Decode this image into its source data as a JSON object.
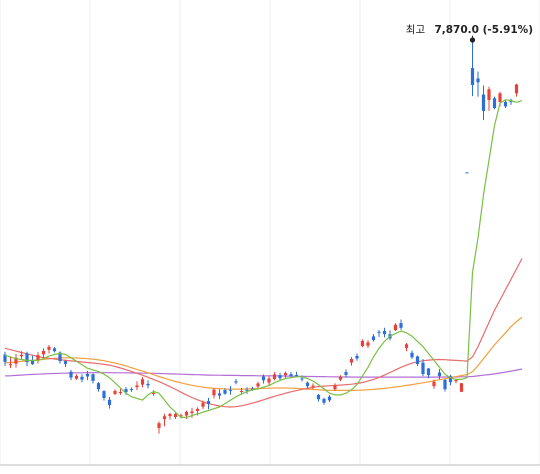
{
  "chart_data": {
    "type": "candlestick",
    "grid": "vertical",
    "colors": {
      "up": "#e8413a",
      "down": "#2d6fd6",
      "grid": "#ececec",
      "baseline": "#bdbdbd",
      "ma_short": "#7ac043",
      "ma_mid": "#e86c6c",
      "ma_long": "#f0a040",
      "ma_longest": "#b46fd6"
    },
    "annotation": {
      "label": "최고",
      "value_text": "7,870.0 (-5.91%)",
      "value": 7870.0,
      "candle_index": 85
    },
    "candles": [
      [
        6024,
        6040,
        5957,
        5982
      ],
      [
        5962,
        6013,
        5945,
        5968
      ],
      [
        5971,
        6028,
        5948,
        6005
      ],
      [
        6014,
        6043,
        5994,
        6023
      ],
      [
        6031,
        6041,
        5957,
        5980
      ],
      [
        5988,
        6017,
        5964,
        5968
      ],
      [
        5988,
        6038,
        5972,
        6020
      ],
      [
        6025,
        6060,
        6001,
        6045
      ],
      [
        6051,
        6079,
        6030,
        6068
      ],
      [
        6060,
        6067,
        6036,
        6043
      ],
      [
        6036,
        6042,
        5972,
        5986
      ],
      [
        5986,
        5994,
        5952,
        5970
      ],
      [
        5924,
        5935,
        5876,
        5891
      ],
      [
        5884,
        5910,
        5877,
        5900
      ],
      [
        5895,
        5910,
        5864,
        5879
      ],
      [
        5912,
        5929,
        5876,
        5897
      ],
      [
        5910,
        5914,
        5856,
        5871
      ],
      [
        5858,
        5865,
        5809,
        5823
      ],
      [
        5812,
        5817,
        5757,
        5772
      ],
      [
        5762,
        5778,
        5711,
        5732
      ],
      [
        5796,
        5823,
        5789,
        5813
      ],
      [
        5803,
        5826,
        5790,
        5807
      ],
      [
        5824,
        5836,
        5790,
        5806
      ],
      [
        5825,
        5834,
        5808,
        5823
      ],
      [
        5835,
        5869,
        5818,
        5845
      ],
      [
        5850,
        5893,
        5833,
        5881
      ],
      [
        5854,
        5874,
        5828,
        5846
      ],
      [
        5799,
        5817,
        5786,
        5802
      ],
      [
        5599,
        5636,
        5566,
        5626
      ],
      [
        5650,
        5681,
        5608,
        5667
      ],
      [
        5667,
        5687,
        5647,
        5680
      ],
      [
        5662,
        5686,
        5651,
        5679
      ],
      [
        5666,
        5681,
        5654,
        5672
      ],
      [
        5671,
        5700,
        5651,
        5692
      ],
      [
        5685,
        5716,
        5658,
        5694
      ],
      [
        5697,
        5718,
        5671,
        5709
      ],
      [
        5722,
        5757,
        5708,
        5745
      ],
      [
        5754,
        5773,
        5707,
        5738
      ],
      [
        5788,
        5829,
        5770,
        5821
      ],
      [
        5799,
        5823,
        5766,
        5786
      ],
      [
        5818,
        5829,
        5791,
        5797
      ],
      [
        5820,
        5841,
        5790,
        5818
      ],
      [
        5869,
        5882,
        5851,
        5862
      ],
      [
        5812,
        5830,
        5797,
        5813
      ],
      [
        5820,
        5834,
        5796,
        5817
      ],
      [
        5827,
        5838,
        5814,
        5821
      ],
      [
        5839,
        5866,
        5830,
        5857
      ],
      [
        5897,
        5908,
        5856,
        5875
      ],
      [
        5862,
        5897,
        5840,
        5885
      ],
      [
        5882,
        5922,
        5874,
        5909
      ],
      [
        5904,
        5918,
        5870,
        5886
      ],
      [
        5904,
        5926,
        5886,
        5917
      ],
      [
        5910,
        5923,
        5892,
        5899
      ],
      [
        5906,
        5924,
        5893,
        5905
      ],
      [
        5885,
        5903,
        5868,
        5879
      ],
      [
        5861,
        5868,
        5828,
        5841
      ],
      [
        5837,
        5857,
        5823,
        5844
      ],
      [
        5790,
        5796,
        5752,
        5765
      ],
      [
        5767,
        5774,
        5733,
        5745
      ],
      [
        5780,
        5789,
        5749,
        5759
      ],
      [
        5823,
        5858,
        5814,
        5845
      ],
      [
        5878,
        5904,
        5870,
        5896
      ],
      [
        5922,
        5938,
        5893,
        5906
      ],
      [
        5977,
        6009,
        5960,
        5998
      ],
      [
        6016,
        6031,
        5988,
        6001
      ],
      [
        6073,
        6112,
        6066,
        6103
      ],
      [
        6075,
        6107,
        6062,
        6094
      ],
      [
        6129,
        6143,
        6099,
        6108
      ],
      [
        6155,
        6166,
        6126,
        6150
      ],
      [
        6160,
        6179,
        6123,
        6142
      ],
      [
        6141,
        6164,
        6106,
        6117
      ],
      [
        6165,
        6205,
        6160,
        6197
      ],
      [
        6206,
        6227,
        6167,
        6179
      ],
      [
        6062,
        6091,
        6043,
        6083
      ],
      [
        6034,
        6047,
        5999,
        6008
      ],
      [
        6013,
        6018,
        5957,
        5969
      ],
      [
        5977,
        5998,
        5899,
        5911
      ],
      [
        5943,
        5946,
        5887,
        5905
      ],
      [
        5841,
        5878,
        5826,
        5866
      ],
      [
        5920,
        5940,
        5881,
        5899
      ],
      [
        5877,
        5882,
        5810,
        5823
      ],
      [
        5898,
        5907,
        5845,
        5864
      ],
      [
        5869,
        5885,
        5858,
        5876
      ],
      [
        5808,
        5859,
        5806,
        5858
      ],
      [
        7079,
        7079,
        7077,
        7078
      ],
      [
        7683,
        7870,
        7521,
        7585
      ],
      [
        7623,
        7663,
        7518,
        7601
      ],
      [
        7530,
        7582,
        7382,
        7435
      ],
      [
        7498,
        7575,
        7435,
        7560
      ],
      [
        7508,
        7518,
        7445,
        7452
      ],
      [
        7487,
        7546,
        7462,
        7537
      ],
      [
        7487,
        7497,
        7452,
        7461
      ],
      [
        7492,
        7506,
        7470,
        7490
      ],
      [
        7537,
        7592,
        7518,
        7588
      ]
    ],
    "moving_averages": [
      {
        "type": "ma_short",
        "period": 5,
        "values": [
          6020,
          6010,
          6000,
          5995,
          5990,
          5990,
          5990,
          6000,
          6015,
          6025,
          6030,
          6025,
          6005,
          5985,
          5965,
          5945,
          5935,
          5925,
          5910,
          5890,
          5860,
          5830,
          5800,
          5780,
          5770,
          5760,
          5790,
          5810,
          5800,
          5760,
          5720,
          5690,
          5660,
          5660,
          5670,
          5680,
          5690,
          5700,
          5710,
          5720,
          5740,
          5760,
          5780,
          5795,
          5810,
          5820,
          5825,
          5835,
          5845,
          5860,
          5875,
          5885,
          5890,
          5895,
          5895,
          5885,
          5870,
          5850,
          5825,
          5800,
          5790,
          5790,
          5800,
          5820,
          5850,
          5900,
          5950,
          6010,
          6060,
          6100,
          6130,
          6145,
          6160,
          6150,
          6130,
          6100,
          6070,
          6030,
          5990,
          5950,
          5910,
          5890,
          5880,
          5880,
          5890,
          6500,
          6700,
          6950,
          7150,
          7350,
          7480,
          7500,
          7495,
          7485,
          7495
        ]
      },
      {
        "type": "ma_mid",
        "period": 20,
        "values": [
          6060,
          6052,
          6044,
          6036,
          6028,
          6020,
          6012,
          6006,
          6002,
          5998,
          5994,
          5990,
          5987,
          5984,
          5981,
          5978,
          5975,
          5971,
          5967,
          5963,
          5955,
          5946,
          5936,
          5926,
          5915,
          5904,
          5892,
          5880,
          5867,
          5853,
          5838,
          5822,
          5806,
          5790,
          5775,
          5762,
          5750,
          5740,
          5732,
          5726,
          5722,
          5720,
          5722,
          5727,
          5734,
          5742,
          5752,
          5762,
          5772,
          5782,
          5791,
          5800,
          5808,
          5815,
          5822,
          5828,
          5834,
          5838,
          5841,
          5843,
          5845,
          5847,
          5849,
          5852,
          5856,
          5862,
          5870,
          5880,
          5892,
          5905,
          5920,
          5935,
          5950,
          5963,
          5974,
          5982,
          5988,
          5992,
          5994,
          5995,
          5994,
          5992,
          5990,
          5988,
          5986,
          6010,
          6070,
          6140,
          6210,
          6280,
          6340,
          6400,
          6460,
          6520,
          6580
        ]
      },
      {
        "type": "ma_long",
        "period": 60,
        "values": [
          5975,
          5978,
          5981,
          5984,
          5987,
          5990,
          5993,
          5996,
          5999,
          6002,
          6004,
          6005,
          6005,
          6004,
          6002,
          6000,
          5997,
          5993,
          5988,
          5982,
          5975,
          5967,
          5958,
          5948,
          5938,
          5928,
          5918,
          5907,
          5897,
          5887,
          5877,
          5868,
          5860,
          5852,
          5846,
          5840,
          5835,
          5831,
          5828,
          5826,
          5825,
          5824,
          5824,
          5824,
          5825,
          5826,
          5827,
          5828,
          5829,
          5830,
          5830,
          5830,
          5829,
          5828,
          5826,
          5824,
          5822,
          5820,
          5818,
          5817,
          5816,
          5816,
          5816,
          5816,
          5817,
          5818,
          5820,
          5822,
          5825,
          5828,
          5832,
          5836,
          5840,
          5845,
          5850,
          5855,
          5860,
          5866,
          5872,
          5878,
          5884,
          5890,
          5896,
          5902,
          5908,
          5925,
          5960,
          6000,
          6040,
          6080,
          6115,
          6150,
          6185,
          6215,
          6240
        ]
      },
      {
        "type": "ma_longest",
        "period": 120,
        "values": [
          5900,
          5901,
          5903,
          5905,
          5907,
          5909,
          5910,
          5912,
          5913,
          5914,
          5915,
          5916,
          5917,
          5918,
          5918,
          5919,
          5919,
          5919,
          5919,
          5919,
          5918,
          5918,
          5918,
          5917,
          5917,
          5916,
          5916,
          5915,
          5914,
          5913,
          5912,
          5911,
          5910,
          5909,
          5908,
          5907,
          5906,
          5905,
          5904,
          5904,
          5903,
          5903,
          5903,
          5902,
          5902,
          5902,
          5901,
          5901,
          5901,
          5900,
          5900,
          5899,
          5899,
          5898,
          5898,
          5897,
          5897,
          5896,
          5896,
          5895,
          5895,
          5894,
          5894,
          5894,
          5893,
          5893,
          5893,
          5893,
          5893,
          5893,
          5893,
          5893,
          5893,
          5893,
          5893,
          5893,
          5893,
          5893,
          5893,
          5893,
          5894,
          5894,
          5894,
          5895,
          5895,
          5897,
          5900,
          5904,
          5908,
          5912,
          5917,
          5922,
          5928,
          5934,
          5940
        ]
      }
    ]
  }
}
